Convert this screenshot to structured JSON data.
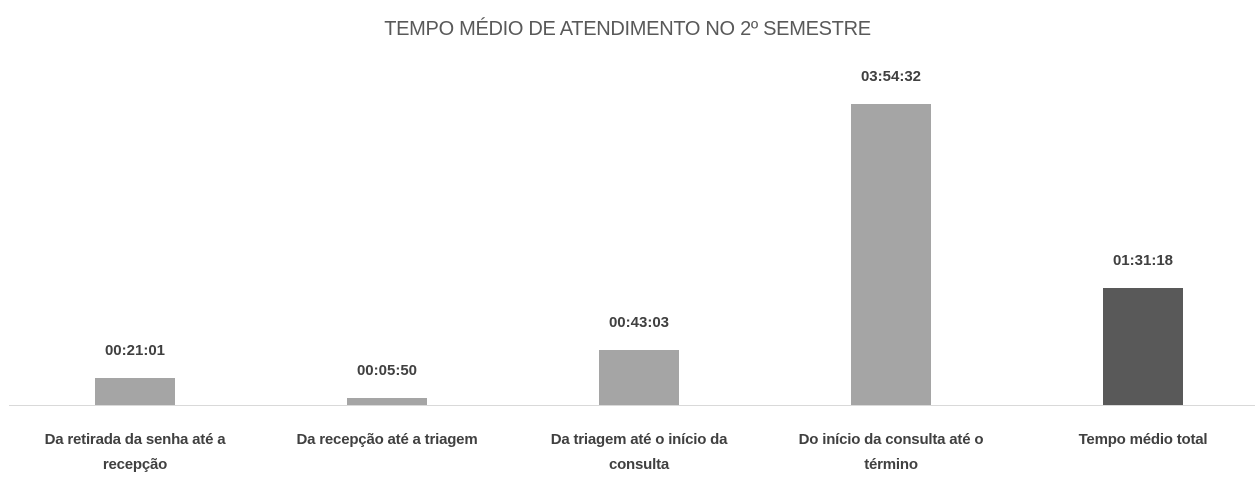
{
  "chart_data": {
    "type": "bar",
    "title": "TEMPO MÉDIO DE ATENDIMENTO NO 2º SEMESTRE",
    "categories": [
      "Da retirada da senha até a recepção",
      "Da recepção até a triagem",
      "Da triagem até o início da consulta",
      "Do início da consulta até o término",
      "Tempo médio total"
    ],
    "values": [
      1261,
      350,
      2583,
      14072,
      5478
    ],
    "value_labels": [
      "00:21:01",
      "00:05:50",
      "00:43:03",
      "03:54:32",
      "01:31:18"
    ],
    "colors": [
      "#a5a5a5",
      "#a5a5a5",
      "#a5a5a5",
      "#a5a5a5",
      "#595959"
    ]
  }
}
